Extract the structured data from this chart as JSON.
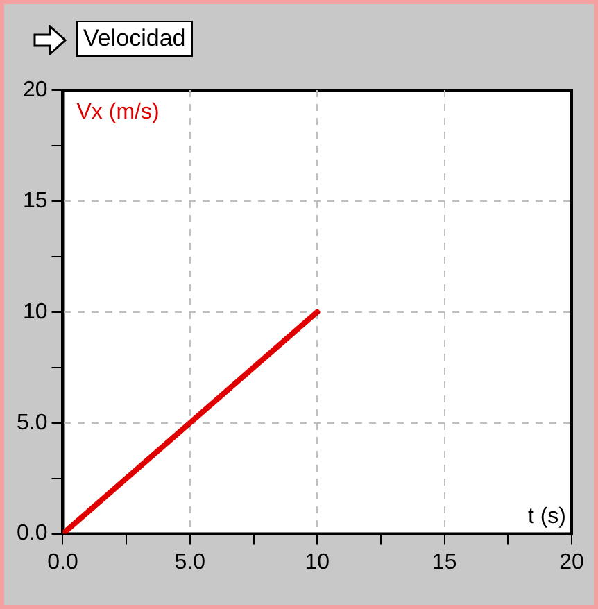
{
  "chart_data": {
    "type": "line",
    "title": "Velocidad",
    "xlabel": "t (s)",
    "ylabel": "Vx (m/s)",
    "x": [
      0,
      10
    ],
    "series": [
      {
        "color": "#e00000",
        "values": [
          0,
          10
        ]
      }
    ],
    "xlim": [
      0,
      20
    ],
    "ylim": [
      0,
      20
    ],
    "xticks": [
      {
        "value": 0,
        "label": "0.0"
      },
      {
        "value": 2.5,
        "label": null
      },
      {
        "value": 5,
        "label": "5.0"
      },
      {
        "value": 7.5,
        "label": null
      },
      10,
      {
        "value": 12.5,
        "label": null
      },
      15,
      {
        "value": 17.5,
        "label": null
      },
      20
    ],
    "yticks": [
      {
        "value": 0,
        "label": "0.0"
      },
      {
        "value": 2.5,
        "label": null
      },
      {
        "value": 5,
        "label": "5.0"
      },
      {
        "value": 7.5,
        "label": null
      },
      10,
      {
        "value": 12.5,
        "label": null
      },
      15,
      {
        "value": 17.5,
        "label": null
      },
      20
    ],
    "grid": true,
    "legend": false,
    "marker": "none",
    "line_style": "solid"
  }
}
